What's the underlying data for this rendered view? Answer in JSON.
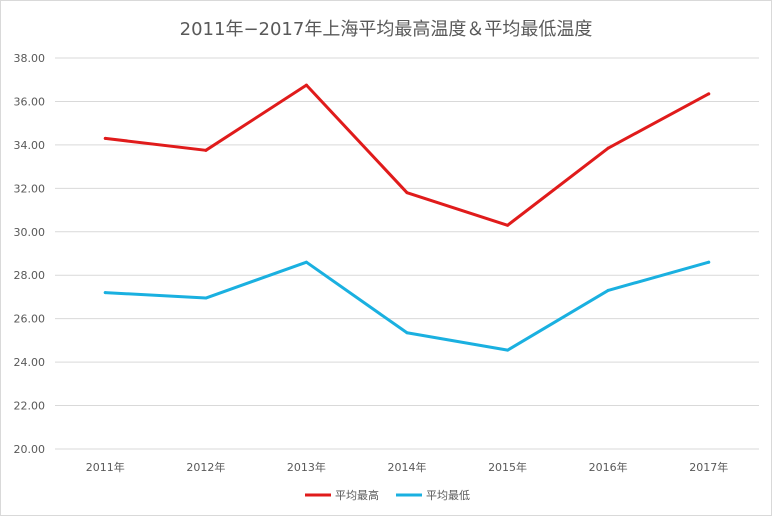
{
  "chart_data": {
    "type": "line",
    "title": "2011年−2017年上海平均最高温度＆平均最低温度",
    "categories": [
      "2011年",
      "2012年",
      "2013年",
      "2014年",
      "2015年",
      "2016年",
      "2017年"
    ],
    "series": [
      {
        "name": "平均最高",
        "color": "#e01b1b",
        "values": [
          34.3,
          33.75,
          36.75,
          31.8,
          30.3,
          33.85,
          36.35
        ]
      },
      {
        "name": "平均最低",
        "color": "#1ab0e0",
        "values": [
          27.2,
          26.95,
          28.6,
          25.35,
          24.55,
          27.3,
          28.6
        ]
      }
    ],
    "ylim": [
      20,
      38
    ],
    "yticks": [
      "20.00",
      "22.00",
      "24.00",
      "26.00",
      "28.00",
      "30.00",
      "32.00",
      "34.00",
      "36.00",
      "38.00"
    ],
    "grid": true,
    "legend_position": "bottom"
  }
}
